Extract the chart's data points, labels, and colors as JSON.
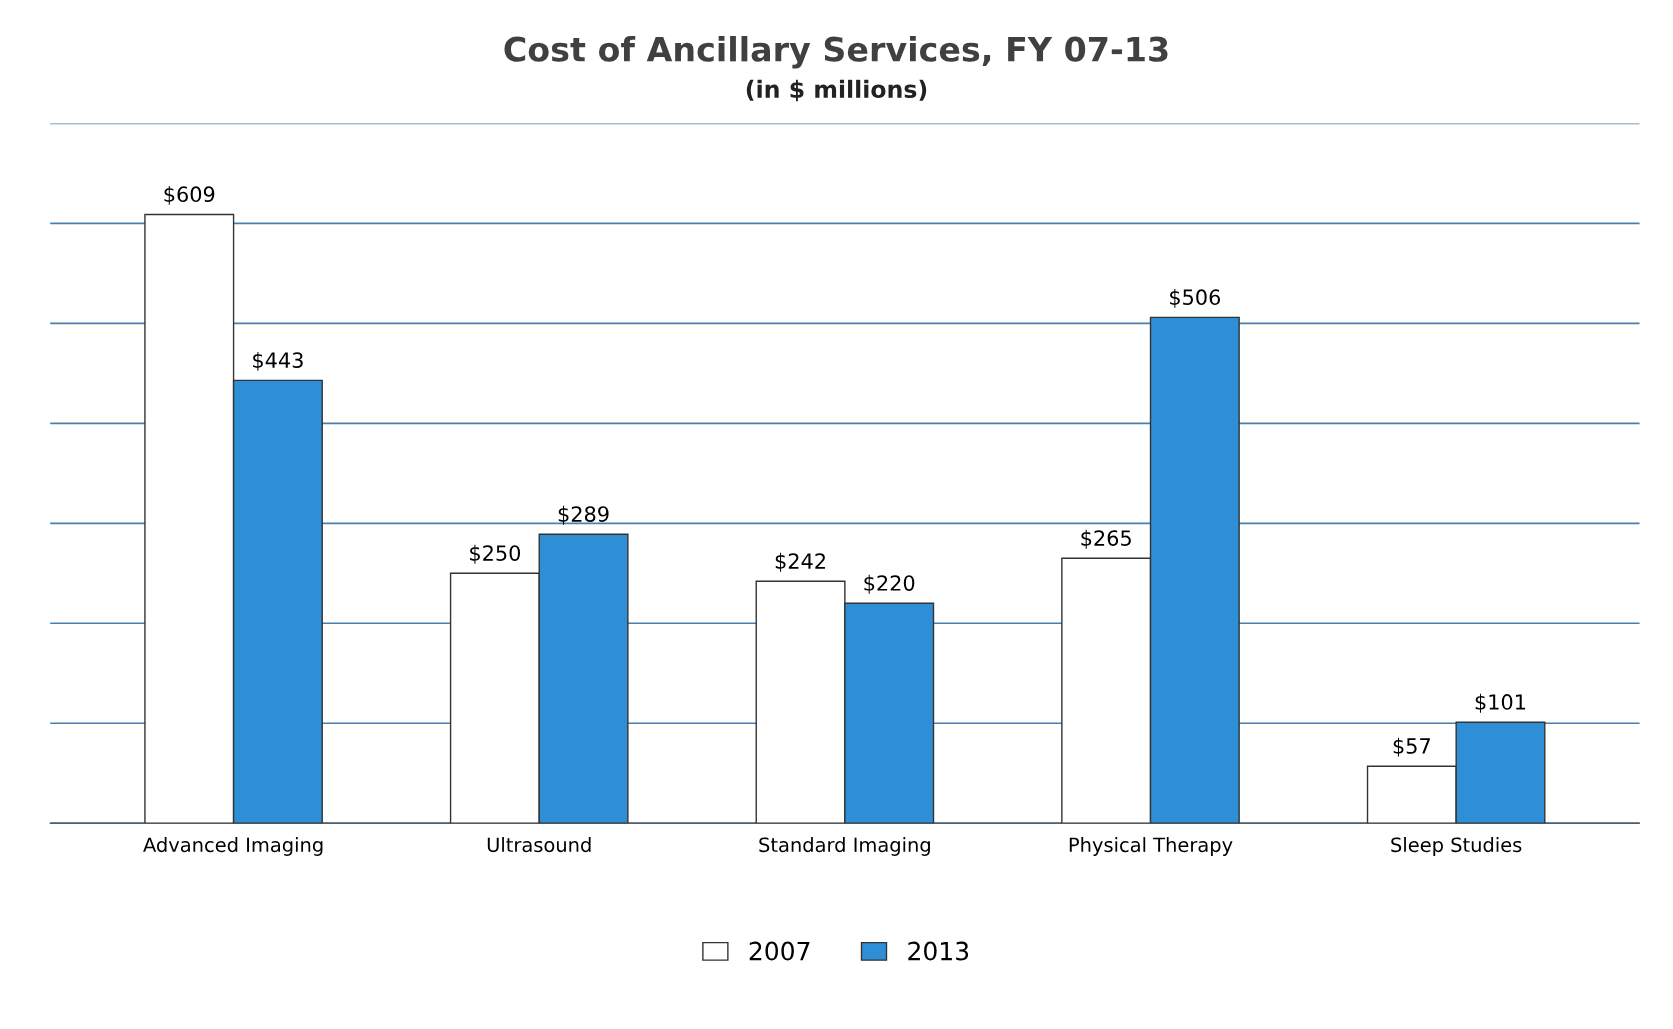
{
  "chart_data": {
    "type": "bar",
    "title": "Cost of Ancillary Services, FY 07-13",
    "subtitle": "(in $ millions)",
    "categories": [
      "Advanced Imaging",
      "Ultrasound",
      "Standard Imaging",
      "Physical Therapy",
      "Sleep Studies"
    ],
    "series": [
      {
        "name": "2007",
        "color": "#ffffff",
        "values": [
          609,
          250,
          242,
          265,
          57
        ],
        "value_labels": [
          "$609",
          "$250",
          "$242",
          "$265",
          "$57"
        ]
      },
      {
        "name": "2013",
        "color": "#2e8fd6",
        "values": [
          443,
          289,
          220,
          506,
          101
        ],
        "value_labels": [
          "$443",
          "$289",
          "$220",
          "$506",
          "$101"
        ]
      }
    ],
    "ylim": [
      0,
      700
    ],
    "yticks": [
      {
        "value": 0,
        "label": null
      },
      {
        "value": 100,
        "label": null
      },
      {
        "value": 200,
        "label": null
      },
      {
        "value": 300,
        "label": null
      },
      {
        "value": 400,
        "label": null
      },
      {
        "value": 500,
        "label": null
      },
      {
        "value": 600,
        "label": null
      },
      {
        "value": 700,
        "label": null
      }
    ],
    "tick_labels": "x",
    "grid": "y",
    "legend": "bottom"
  }
}
